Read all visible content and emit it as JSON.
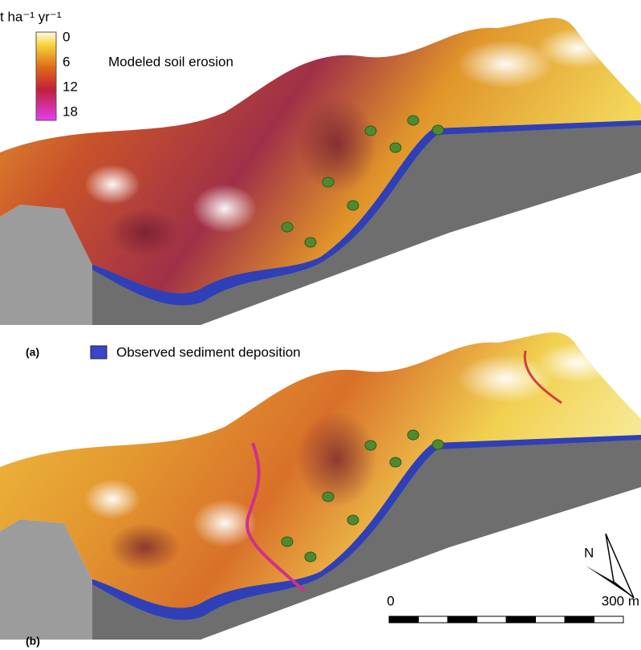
{
  "legend": {
    "unit": "t ha⁻¹ yr⁻¹",
    "ticks": [
      0,
      6,
      12,
      18
    ],
    "title": "Modeled soil erosion",
    "deposition": "Observed sediment deposition"
  },
  "panels": [
    "(a)",
    "(b)"
  ],
  "north": "N",
  "scale_bar": {
    "start": "0",
    "end": "300 m"
  }
}
